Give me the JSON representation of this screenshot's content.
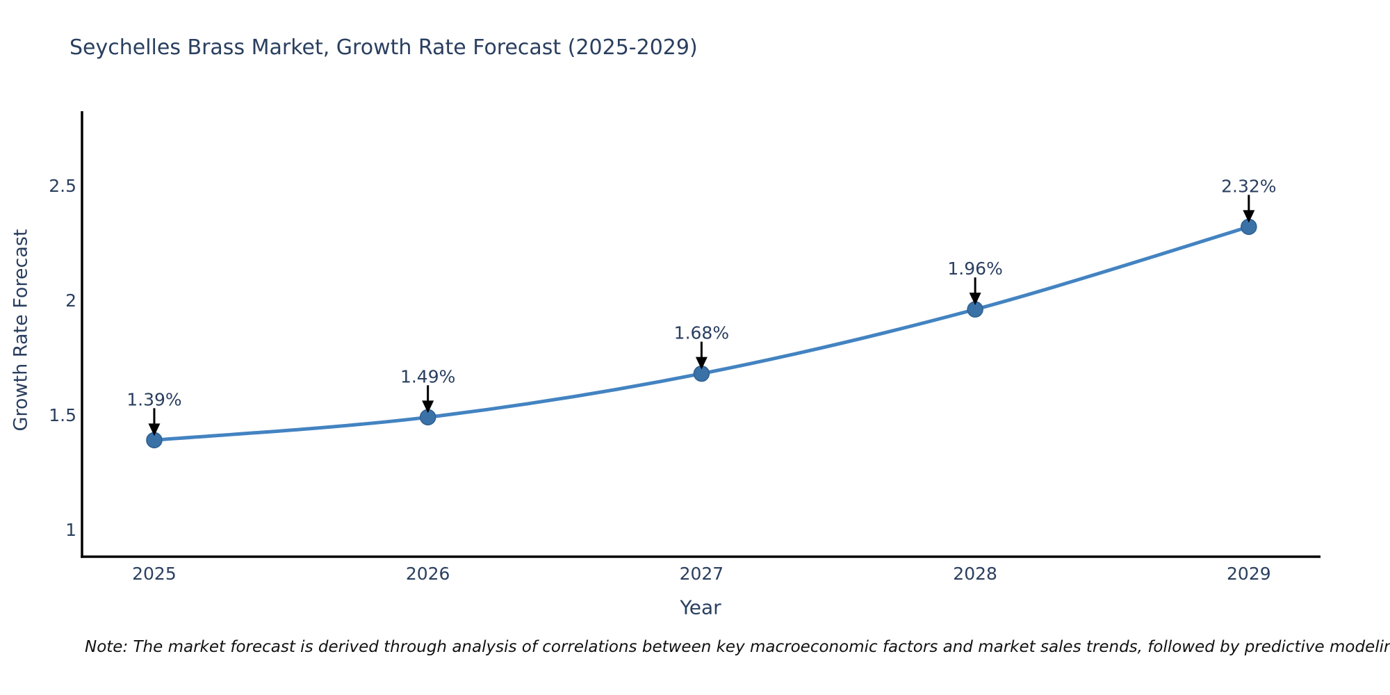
{
  "title": "Seychelles Brass Market, Growth Rate Forecast (2025-2029)",
  "note": "Note: The market forecast is derived through analysis of correlations between key macroeconomic factors and market sales trends, followed by predictive modeling to project future sales",
  "chart_data": {
    "type": "line",
    "title": "Seychelles Brass Market, Growth Rate Forecast (2025-2029)",
    "xlabel": "Year",
    "ylabel": "Growth Rate Forecast",
    "x": [
      2025,
      2026,
      2027,
      2028,
      2029
    ],
    "values": [
      1.39,
      1.49,
      1.68,
      1.96,
      2.32
    ],
    "point_labels": [
      "1.39%",
      "1.49%",
      "1.68%",
      "1.96%",
      "2.32%"
    ],
    "yticks": [
      1,
      1.5,
      2,
      2.5
    ],
    "xticks": [
      2025,
      2026,
      2027,
      2028,
      2029
    ],
    "xlim": [
      2024.736,
      2029.262
    ],
    "ylim": [
      0.882,
      2.824
    ],
    "grid": false,
    "legend": false,
    "line_style": "spline",
    "colors": {
      "line": "#4383c1",
      "marker": "#3a72a8",
      "marker_edge": "#2f5f8f",
      "axis": "#000000",
      "text": "#2a3f5f",
      "annotation_text": "#2a3f5f",
      "arrow": "#000000"
    }
  }
}
